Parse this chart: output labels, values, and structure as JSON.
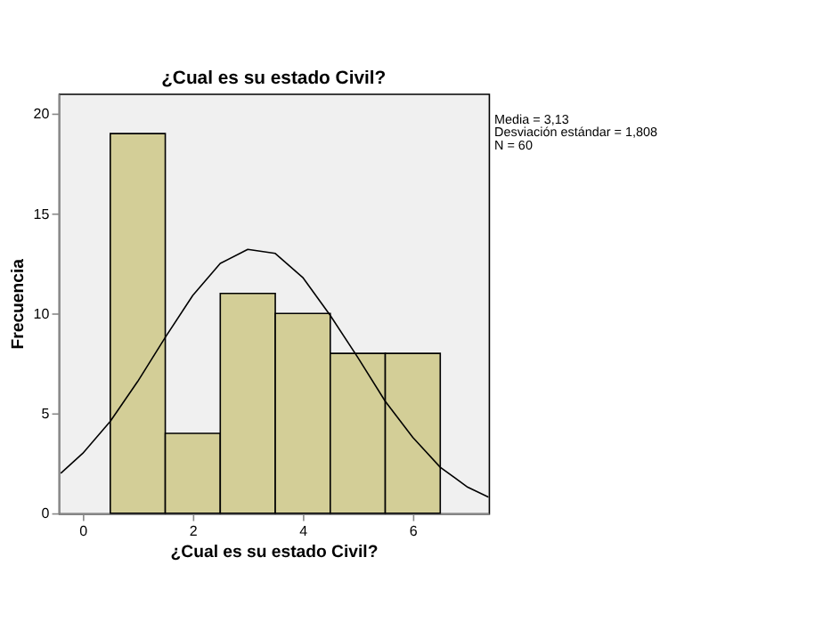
{
  "chart_data": {
    "type": "histogram",
    "title": "¿Cual es su estado Civil?",
    "xlabel": "¿Cual es su estado Civil?",
    "ylabel": "Frecuencia",
    "bins": [
      0.5,
      1.5,
      2.5,
      3.5,
      4.5,
      5.5,
      6.5
    ],
    "values": [
      19,
      4,
      11,
      10,
      8,
      8
    ],
    "color": "#d3ce97",
    "series": [
      {
        "type": "line",
        "color": "#000000",
        "x": [
          -0.4,
          0,
          0.5,
          1,
          1.5,
          2,
          2.5,
          3,
          3.5,
          4,
          4.5,
          5,
          5.5,
          6,
          6.5,
          7,
          7.38
        ],
        "values": [
          2.0,
          3.0,
          4.6,
          6.6,
          8.8,
          10.9,
          12.5,
          13.2,
          13.0,
          11.8,
          9.9,
          7.8,
          5.6,
          3.8,
          2.3,
          1.3,
          0.8
        ]
      }
    ],
    "xlim": [
      -0.44,
      7.38
    ],
    "xticks": [
      0,
      2,
      4,
      6
    ],
    "ylim": [
      0,
      21
    ],
    "yticks": [
      0,
      5,
      10,
      15,
      20
    ],
    "grid": false,
    "annotations": [
      "Media = 3,13",
      "Desviación estándar = 1,808",
      "N = 60"
    ]
  }
}
